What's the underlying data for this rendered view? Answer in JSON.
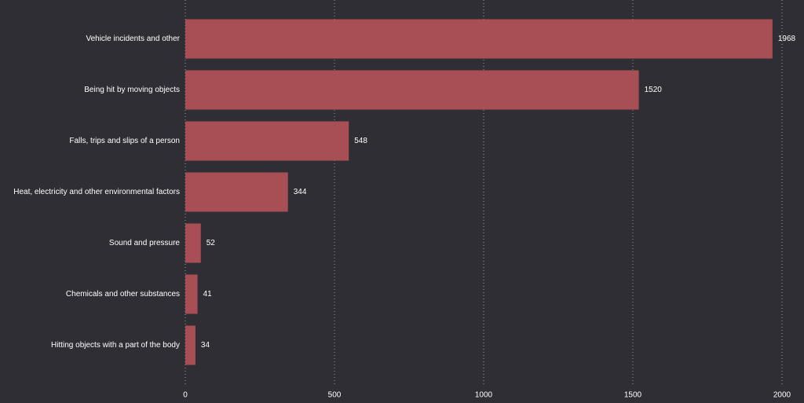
{
  "chart_data": {
    "type": "bar",
    "orientation": "horizontal",
    "categories": [
      "Vehicle incidents and other",
      "Being hit by moving objects",
      "Falls, trips and slips of a person",
      "Heat, electricity and other environmental factors",
      "Sound and pressure",
      "Chemicals and other substances",
      "Hitting objects with a part of the body"
    ],
    "values": [
      1968,
      1520,
      548,
      344,
      52,
      41,
      34
    ],
    "value_labels": [
      "1968",
      "1520",
      "548",
      "344",
      "52",
      "41",
      "34"
    ],
    "xlim": [
      0,
      2000
    ],
    "x_ticks": [
      0,
      500,
      1000,
      1500,
      2000
    ],
    "x_tick_labels": [
      "0",
      "500",
      "1000",
      "1500",
      "2000"
    ],
    "grid": "vertical dotted",
    "legend": "none",
    "title": "",
    "xlabel": "",
    "ylabel": ""
  },
  "colors": {
    "background": "#2f2e34",
    "bar": "#a84f56",
    "text": "#ffffff",
    "grid": "#9a9aa2"
  }
}
